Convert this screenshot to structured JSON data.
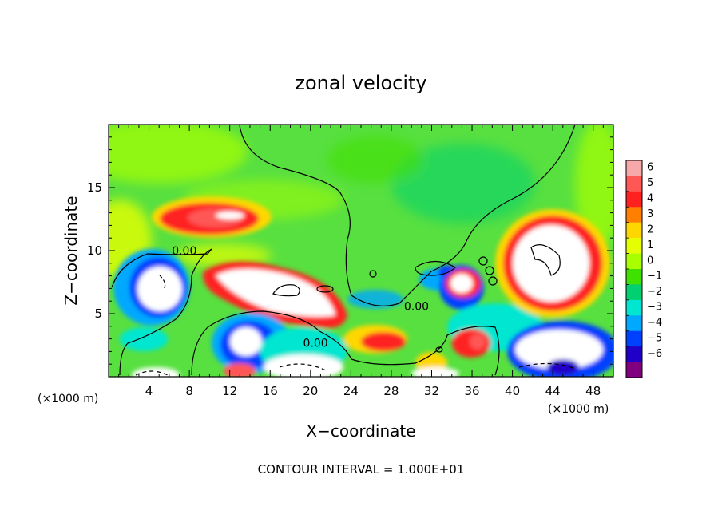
{
  "chart_data": {
    "type": "heatmap",
    "title": "zonal velocity",
    "xlabel": "X−coordinate",
    "ylabel": "Z−coordinate",
    "x_unit_left": "(×1000 m)",
    "x_unit_right": "(×1000 m)",
    "xlim": [
      0,
      50
    ],
    "ylim": [
      0,
      20
    ],
    "x_ticks": [
      4,
      8,
      12,
      16,
      20,
      24,
      28,
      32,
      36,
      40,
      44,
      48
    ],
    "y_ticks": [
      5,
      10,
      15
    ],
    "footer": "CONTOUR INTERVAL = 1.000E+01",
    "contour_labels": [
      {
        "text": "0.00",
        "x": 7.5,
        "y": 10.0
      },
      {
        "text": "0.00",
        "x": 30.5,
        "y": 5.6
      },
      {
        "text": "0.00",
        "x": 20.5,
        "y": 2.7
      }
    ],
    "colorbar": {
      "levels": [
        6,
        5,
        4,
        3,
        2,
        1,
        0,
        -1,
        -2,
        -3,
        -4,
        -5,
        -6
      ],
      "colors": [
        "#f7a8a8",
        "#ff5656",
        "#ff2020",
        "#ff8000",
        "#ffd700",
        "#e6ff00",
        "#a8ff00",
        "#40e000",
        "#00d070",
        "#00e6d0",
        "#00a8ff",
        "#0040ff",
        "#2000c8",
        "#800080"
      ]
    },
    "colors": {
      "background_field": "#58e040",
      "saturated_high": "#ffffff",
      "saturated_low": "#ffffff"
    },
    "features": [
      {
        "kind": "max",
        "x": 10.5,
        "z": 12.0,
        "value": 6
      },
      {
        "kind": "max",
        "x": 17.0,
        "z": 7.0,
        "value": 6
      },
      {
        "kind": "max",
        "x": 43.5,
        "z": 9.5,
        "value": 6
      },
      {
        "kind": "max",
        "x": 36.0,
        "z": 7.0,
        "value": 6
      },
      {
        "kind": "max",
        "x": 28.0,
        "z": 2.8,
        "value": 4
      },
      {
        "kind": "max",
        "x": 36.0,
        "z": 2.8,
        "value": 4
      },
      {
        "kind": "min",
        "x": 4.5,
        "z": 7.0,
        "value": -6
      },
      {
        "kind": "min",
        "x": 13.5,
        "z": 2.5,
        "value": -6
      },
      {
        "kind": "min",
        "x": 44.0,
        "z": 2.5,
        "value": -6
      },
      {
        "kind": "min",
        "x": 19.0,
        "z": 0.5,
        "value": -6
      },
      {
        "kind": "min",
        "x": 39.0,
        "z": 16.0,
        "value": -1
      },
      {
        "kind": "min",
        "x": 26.0,
        "z": 6.0,
        "value": -2
      }
    ]
  }
}
